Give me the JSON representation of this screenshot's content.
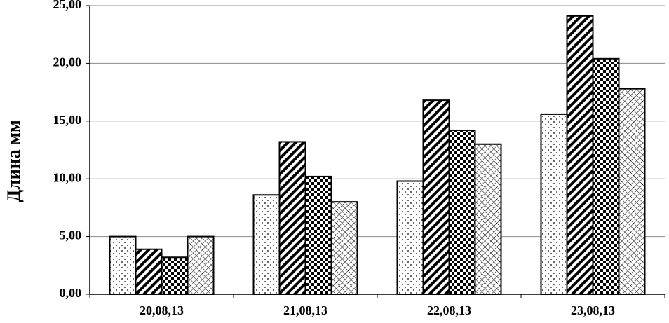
{
  "chart_data": {
    "type": "bar",
    "y_label": "Длина мм",
    "categories": [
      "20,08,13",
      "21,08,13",
      "22,08,13",
      "23,08,13"
    ],
    "series": [
      {
        "color": "#000000",
        "pattern": "dots",
        "values": [
          5.0,
          8.6,
          9.8,
          15.6
        ]
      },
      {
        "color": "#000000",
        "pattern": "stripes",
        "values": [
          3.9,
          13.2,
          16.8,
          24.1
        ]
      },
      {
        "color": "#000000",
        "pattern": "checker",
        "values": [
          3.2,
          10.2,
          14.2,
          20.4
        ]
      },
      {
        "color": "#000000",
        "pattern": "crosshatch",
        "values": [
          5.0,
          8.0,
          13.0,
          17.8
        ]
      }
    ],
    "ylim": [
      0,
      25
    ],
    "yticks": [
      {
        "value": 0,
        "label": "0,00"
      },
      {
        "value": 5,
        "label": "5,00"
      },
      {
        "value": 10,
        "label": "10,00"
      },
      {
        "value": 15,
        "label": "15,00"
      },
      {
        "value": 20,
        "label": "20,00"
      },
      {
        "value": 25,
        "label": "25,00"
      }
    ],
    "grid": true
  }
}
